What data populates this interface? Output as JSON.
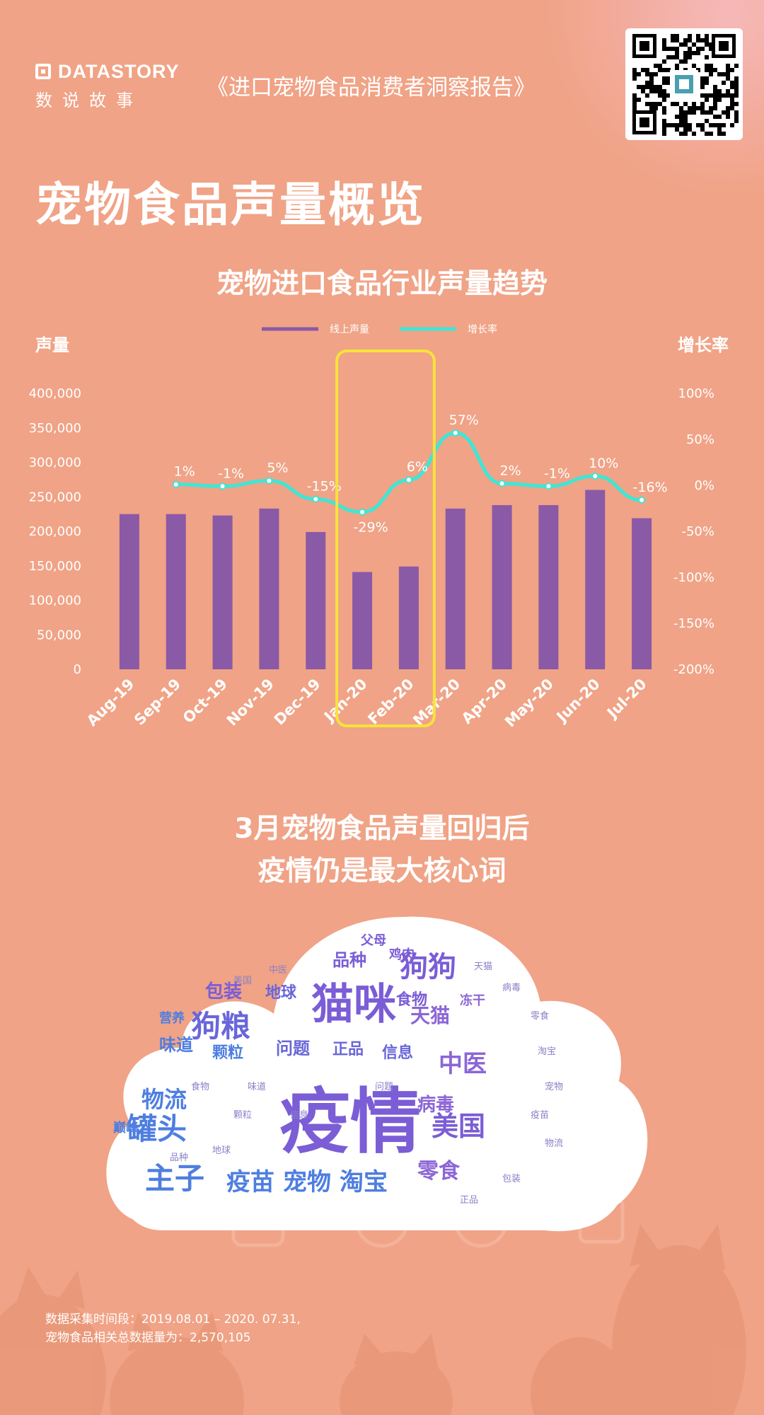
{
  "header": {
    "logo_en": "DATASTORY",
    "logo_cn": "数说故事",
    "report_title": "《进口宠物食品消费者洞察报告》"
  },
  "page_title": "宠物食品声量概览",
  "chart_data": {
    "type": "bar",
    "title": "宠物进口食品行业声量趋势",
    "categories": [
      "Aug-19",
      "Sep-19",
      "Oct-19",
      "Nov-19",
      "Dec-19",
      "Jan-20",
      "Feb-20",
      "Mar-20",
      "Apr-20",
      "May-20",
      "Jun-20",
      "Jul-20"
    ],
    "series": [
      {
        "name": "线上声量",
        "type": "bar",
        "axis": "left",
        "color": "#8a5aa6",
        "values": [
          225000,
          225000,
          223000,
          233000,
          199000,
          141000,
          149000,
          233000,
          238000,
          238000,
          260000,
          219000
        ]
      },
      {
        "name": "增长率",
        "type": "line",
        "axis": "right",
        "color": "#3ee6d6",
        "values": [
          null,
          1,
          -1,
          5,
          -15,
          -29,
          6,
          57,
          2,
          -1,
          10,
          -16
        ],
        "labels": [
          "",
          "1%",
          "-1%",
          "5%",
          "-15%",
          "-29%",
          "6%",
          "57%",
          "2%",
          "-1%",
          "10%",
          "-16%"
        ]
      }
    ],
    "ylabel_left": "声量",
    "ylabel_right": "增长率",
    "ylim_left": [
      0,
      400000
    ],
    "ylim_right": [
      -200,
      100
    ],
    "left_ticks": [
      "0",
      "50,000",
      "100,000",
      "150,000",
      "200,000",
      "250,000",
      "300,000",
      "350,000",
      "400,000"
    ],
    "right_ticks": [
      "-200%",
      "-150%",
      "-100%",
      "-50%",
      "0%",
      "50%",
      "100%"
    ],
    "legend_position": "top-center",
    "highlight_categories": [
      "Jan-20",
      "Feb-20"
    ],
    "highlight_color": "#f7e23b"
  },
  "subtitle": {
    "line1": "3月宠物食品声量回归后",
    "line2": "疫情仍是最大核心词"
  },
  "wordcloud": {
    "center": "疫情",
    "words": [
      "猫咪",
      "狗狗",
      "狗粮",
      "罐头",
      "主子",
      "美国",
      "中医",
      "天猫",
      "病毒",
      "零食",
      "淘宝",
      "宠物",
      "疫苗",
      "物流",
      "包装",
      "食物",
      "味道",
      "品种",
      "地球",
      "问题",
      "正品",
      "信息",
      "颗粒",
      "冻干",
      "巅峰",
      "营养",
      "父母",
      "鸡肉",
      "冻干",
      "美国",
      "中医",
      "猫咪",
      "罐头",
      "宠物",
      "狗狗",
      "正品",
      "地球",
      "零食",
      "病毒",
      "疫苗"
    ]
  },
  "footnote": {
    "line1": "数据采集时间段：2019.08.01 – 2020. 07.31,",
    "line2": "宠物食品相关总数据量为：2,570,105"
  }
}
